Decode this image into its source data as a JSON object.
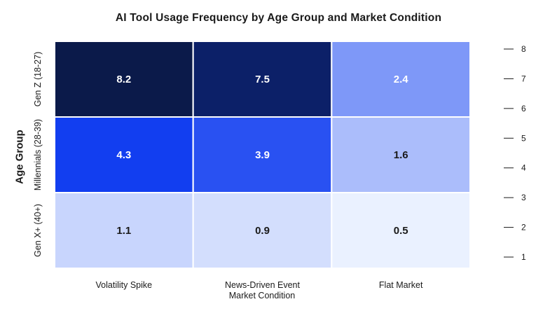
{
  "chart_data": {
    "type": "heatmap",
    "title": "AI Tool Usage Frequency by Age Group and Market Condition",
    "xlabel": "Market Condition",
    "ylabel": "Age Group",
    "x_categories": [
      "Volatility Spike",
      "News-Driven Event",
      "Flat Market"
    ],
    "y_categories": [
      "Gen Z (18-27)",
      "Millennials (28-39)",
      "Gen X+ (40+)"
    ],
    "values": [
      [
        8.2,
        7.5,
        2.4
      ],
      [
        4.3,
        3.9,
        1.6
      ],
      [
        1.1,
        0.9,
        0.5
      ]
    ],
    "colorbar": {
      "ticks": [
        8,
        7,
        6,
        5,
        4,
        3,
        2,
        1
      ],
      "range": [
        0.5,
        8.2
      ],
      "position": "right"
    },
    "colors": {
      "dark": "#0b1a4a",
      "mid": "#0f3cf0",
      "light": "#eaf1ff"
    },
    "grid": false
  }
}
